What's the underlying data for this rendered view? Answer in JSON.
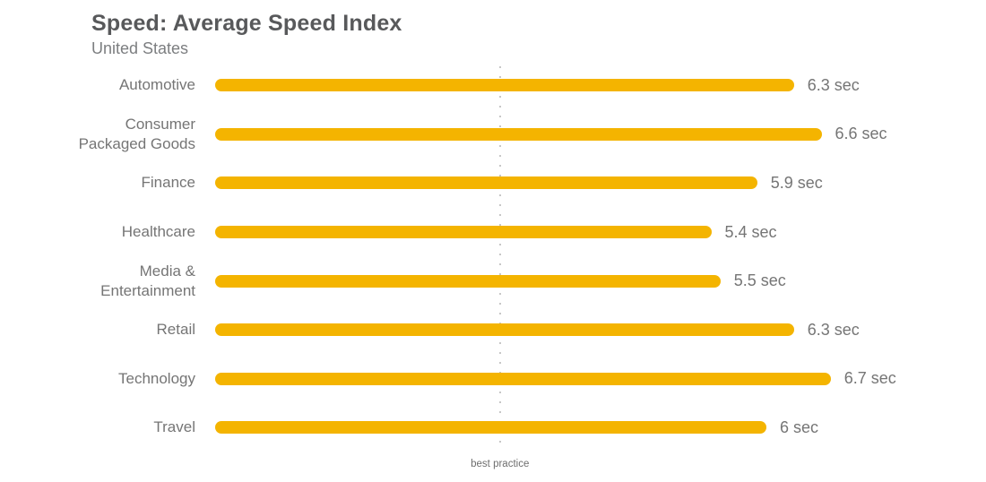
{
  "header": {
    "title": "Speed: Average Speed Index",
    "subtitle": "United States"
  },
  "chart_data": {
    "type": "bar",
    "orientation": "horizontal",
    "title": "Speed: Average Speed Index",
    "subtitle": "United States",
    "unit": "sec",
    "categories": [
      "Automotive",
      "Consumer\nPackaged Goods",
      "Finance",
      "Healthcare",
      "Media &\nEntertainment",
      "Retail",
      "Technology",
      "Travel"
    ],
    "values": [
      6.3,
      6.6,
      5.9,
      5.4,
      5.5,
      6.3,
      6.7,
      6.0
    ],
    "value_labels": [
      "6.3 sec",
      "6.6 sec",
      "5.9 sec",
      "5.4 sec",
      "5.5 sec",
      "6.3 sec",
      "6.7 sec",
      "6 sec"
    ],
    "xlim": [
      0,
      8.4
    ],
    "grid": false,
    "legend": "none",
    "bar_color": "#F4B400",
    "best_practice": {
      "label": "best practice",
      "value_sec": 3.1,
      "line_style": "dotted",
      "line_color": "#c7c7c7"
    }
  }
}
